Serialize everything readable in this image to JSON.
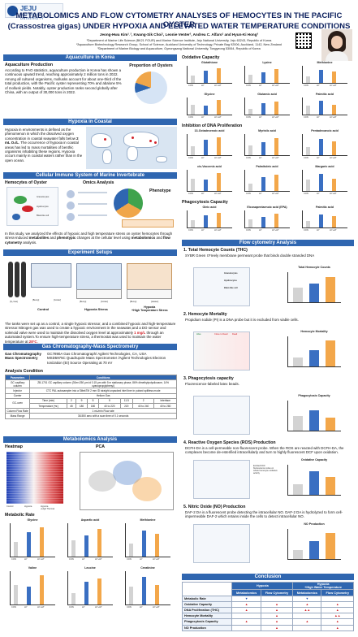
{
  "header": {
    "logo_text": "JEJU",
    "logo_sub": "NATIONAL UNIVERSITY",
    "title_line1": "METABOLOMICS AND FLOW CYTOMETRY ANALYSES OF HEMOCYTES IN THE PACIFIC OYSTER",
    "title_line2": "(Crassostrea gigas) UNDER HYPOXIA AND ELEVATED WATER TEMPERATURE CONDITIONS",
    "authors": "Jeong-Hwa Kim¹˒², Kwang-Sik Choi¹, Leonie Venter², Andrea C. Alfaro² and Hyun-Ki Hong³",
    "affiliations": [
      "¹Department of Marine Life Science (BK21 FOUR) and Marine Science Institute, Jeju National University, Jeju 63243, Republic of Korea",
      "²Aquaculture Biotechnology Research Group, School of Science, Auckland University of Technology, Private Bag 92006, Auckland, 1142, New Zealand",
      "³Department of Marine Biology and Aquaculture, Gyeongsang National University, Tongyeong 53064, Republic of Korea"
    ]
  },
  "sections": {
    "aquaculture": "Aquaculture in Korea",
    "hypoxia": "Hypoxia in Coastal",
    "immune": "Cellular Immune System of Marine Invertebrate",
    "setups": "Experiment Setups",
    "gcms": "Gas Chromatography-Mass Spectrometry",
    "metabolomics": "Metabolomics Analysis",
    "flow": "Flow cytometry Analysis",
    "conclusion": "Conclusion"
  },
  "aquaculture": {
    "heading": "Aquaculture Production",
    "text": "According to FAO statistics, aquaculture production in Korea has shown a continuous upward trend, reaching approximately 2 million tons in 2022. Among all cultured organisms, mollusks account for about one-third of the total production, with the Pacific oyster representing 70% and abalone 5% of mollusk yields. Notably, oyster production ranks second globally after China, with an output of 30,000 tons in 2022.",
    "pie_title": "Proportion of Oysters"
  },
  "hypoxia": {
    "text_pre": "Hypoxia in environments is defined as the phenomenon in which the dissolved oxygen concentration in coastal seawater falls below ",
    "text_bold": "2 mL O₂/L",
    "text_post": ". The occurrence of hypoxia in coastal areas has led to mass mortalities of benthic organisms inhabiting these regions. Hypoxia occurs mainly in coastal waters rather than in the open ocean."
  },
  "immune": {
    "hemocytes": "Hemocytes of Oyster",
    "omics": "Omics Analysis",
    "phenotype": "Phenotype",
    "cell_labels": [
      "Granulocytes",
      "Hyalinocytes",
      "Blast-like cell"
    ],
    "text_pre": "In this study, we analyzed the effects of hypoxic and high temperature stress on oyster hemocytes through stress-induced ",
    "text_b1": "metabolites",
    "text_mid": " and ",
    "text_b2": "phenotypic",
    "text_mid2": " changes at the cellular level using ",
    "text_b3": "metabolomics",
    "text_and": " and ",
    "text_b4": "flow cytometry",
    "text_end": " analysis."
  },
  "setups": {
    "gas_label": "[N₂ Gas]",
    "tank_labels": [
      "[Bump]",
      "[Cooler]",
      "[Bump]",
      "[Cooler]",
      "[Bump]",
      "[Heater]"
    ],
    "group_labels": [
      "Control",
      "Hypoxia Stress",
      "Hypoxia\n+High Temperature Stress"
    ],
    "text_pre": "The tanks were set up as a control, a single hypoxic stressor, and a combined hypoxic and high-temperature stressor.Nitrogen gas was used to create a hypoxic environment in the seawater,and a DO sensor and solenoid valve were used to maintain the dissolved oxygen level at approximately ",
    "text_red1": "1 mg/L",
    "text_mid": " through an automated system.To ensure high-temperature stress, a thermostat was used to maintain the water temperature at ",
    "text_red2": "28°C",
    "text_end": "."
  },
  "gcms": {
    "rows": [
      {
        "k": "Gas Chromatography",
        "v": "GC7890A Gas Chromatograph/ Agilent Technologies, CA, USA"
      },
      {
        "k": "Mass Spectrometry",
        "v": "MSD5975C Quadrupole Mass Spectrometer /Agilent Technologies Electron Ionization (EI) Source Operating at 70 eV"
      }
    ],
    "analysis_heading": "Analysis Condition",
    "table_head": [
      "Parameters",
      "Conditions"
    ],
    "table_rows": [
      [
        "GC capillary column",
        "ZB-1701 GC capillary column (30m×250 μm id 0.15 μm with 5 m stationary phase, 86% dimethylpolysiloxane, 14% cyanopropylphenyl)"
      ],
      [
        "Injector",
        "CTC PAL autosampler into a SiltekTM 2 mm ID straight unpacked inlet liner in pulsed splitless mode"
      ],
      [
        "Carrier",
        "Helium Gas"
      ]
    ],
    "oven_label": "GC-oven",
    "oven_time_label": "Time (min)",
    "oven_temp_label": "Temperature (℃)",
    "oven_times": [
      "2",
      "9",
      "5",
      "5",
      "11.5",
      "2",
      "Interface"
    ],
    "oven_temps": [
      "45",
      "180",
      "180",
      "40 to 220",
      "220",
      "40 to 240",
      "40 to 280",
      "250"
    ],
    "flow_label": "Column Flow Rate",
    "flow_value": "1 mL/min Flow rate",
    "mass_label": "Mass Range",
    "mass_value": "38-550 amu with a scan time of 0.1 seconds"
  },
  "metabolomics": {
    "heatmap_title": "Heatmap",
    "pca_title": "PCA",
    "groups": [
      "Control",
      "Hypoxia",
      "Hypoxia\n+High Thermal"
    ],
    "rate_heading": "Metabolic Rate",
    "rate_charts": [
      "Glycine",
      "Aspartic acid",
      "Methionine",
      "Valine",
      "Leucine",
      "Creatinine"
    ],
    "x_labels": [
      "CON",
      "HY",
      "HY+HT"
    ]
  },
  "right_panels": {
    "oxidative": "Oxidative Capacity",
    "oxidative_charts": [
      "Glutathione",
      "Lysine",
      "Methionine",
      "Glycine",
      "Glutamic acid",
      "Palmitic acid"
    ],
    "dna": "Inhibition of DNA Proliferation",
    "dna_charts": [
      "13-Octadecenoic acid",
      "Myristic acid",
      "Pentadecanoic acid",
      "cis-Vaccenic acid",
      "Palmitoleic acid",
      "Margaric acid"
    ],
    "phago": "Phagocytosis Capacity",
    "phago_charts": [
      "Oleic acid",
      "Eicosapentaenoic acid (EPA)",
      "Palmitic acid"
    ]
  },
  "flow": {
    "items": [
      {
        "h": "1. Total Hemocyte Counts (THC)",
        "t": "SYBR Green I:Freely membrane permeant probe that binds double stranded DNA",
        "chart": "Total Hemocyte Counts"
      },
      {
        "h": "2. Hemocyte Mortality",
        "t": "Propidium Iodide (PI) is a DNA probe but it is excluded from viable cells.",
        "chart": "Hemocyte Mortality"
      },
      {
        "h": "3. Phagocytosis capacity",
        "t": "Fluorescence-labeled latex beads.",
        "chart": "Phagocytosis Capacity"
      },
      {
        "h": "4. Reactive Oxygen Species (ROS) Production",
        "t": "DCFH-DA is a cell-permeable non-fluorescent probe. When the ROS are reacted with DCFH-DA, the complexes become de-esterified intracellularly and turn to highly fluorescent DCF upon oxidation.",
        "chart": "Oxidative Capacity"
      },
      {
        "h": "5. Nitric Oxide (NO) Production",
        "t": "DAF-2 DA is a fluorescent probe detecting the intracellular NO.  DAF-2 DA is hydrolyzed to form cell-impermeable DAF-2 which retains inside the cells to detect intracellular NO.",
        "chart": "NO Production"
      }
    ],
    "gate_labels": [
      "Granulocytes",
      "Hyalinocytes",
      "Blast-like cell"
    ],
    "mort_labels": [
      "Alive",
      "Close to Dead",
      "Dead"
    ],
    "ros_label": "Emitted DCF fluorescence relies on whole hemocyte oxidative activity"
  },
  "conclusion": {
    "col_hypoxia": "Hypoxia",
    "col_hyht": "Hypoxia\n+High Water Temperature",
    "sub_cols": [
      "Metabolomics",
      "Flow Cytometry",
      "Metabolomics",
      "Flow Cytometry"
    ],
    "rows": [
      {
        "label": "Metabolic Rate",
        "cells": [
          "▼",
          "",
          "▼",
          ""
        ]
      },
      {
        "label": "Oxidative Capacity",
        "cells": [
          "▲",
          "▲",
          "▲",
          "▲"
        ]
      },
      {
        "label": "DNA Proliferation (THC)",
        "cells": [
          "▲",
          "▲",
          "▲▲",
          "▲"
        ]
      },
      {
        "label": "Hemocyte Mortality",
        "cells": [
          "",
          "▲",
          "",
          "▲▲"
        ]
      },
      {
        "label": "Phagocytosis Capacity",
        "cells": [
          "▲",
          "▲",
          "▲",
          "▲"
        ]
      },
      {
        "label": "NO Production",
        "cells": [
          "",
          "▲",
          "",
          "▲"
        ]
      }
    ]
  },
  "colors": {
    "primary": "#2f66b0",
    "title": "#0b1f5c",
    "control": "#d3d3d3",
    "hypoxia": "#3a6fc2",
    "hyht": "#f3a74a",
    "up": "#d1232a",
    "down": "#1f4fae"
  }
}
